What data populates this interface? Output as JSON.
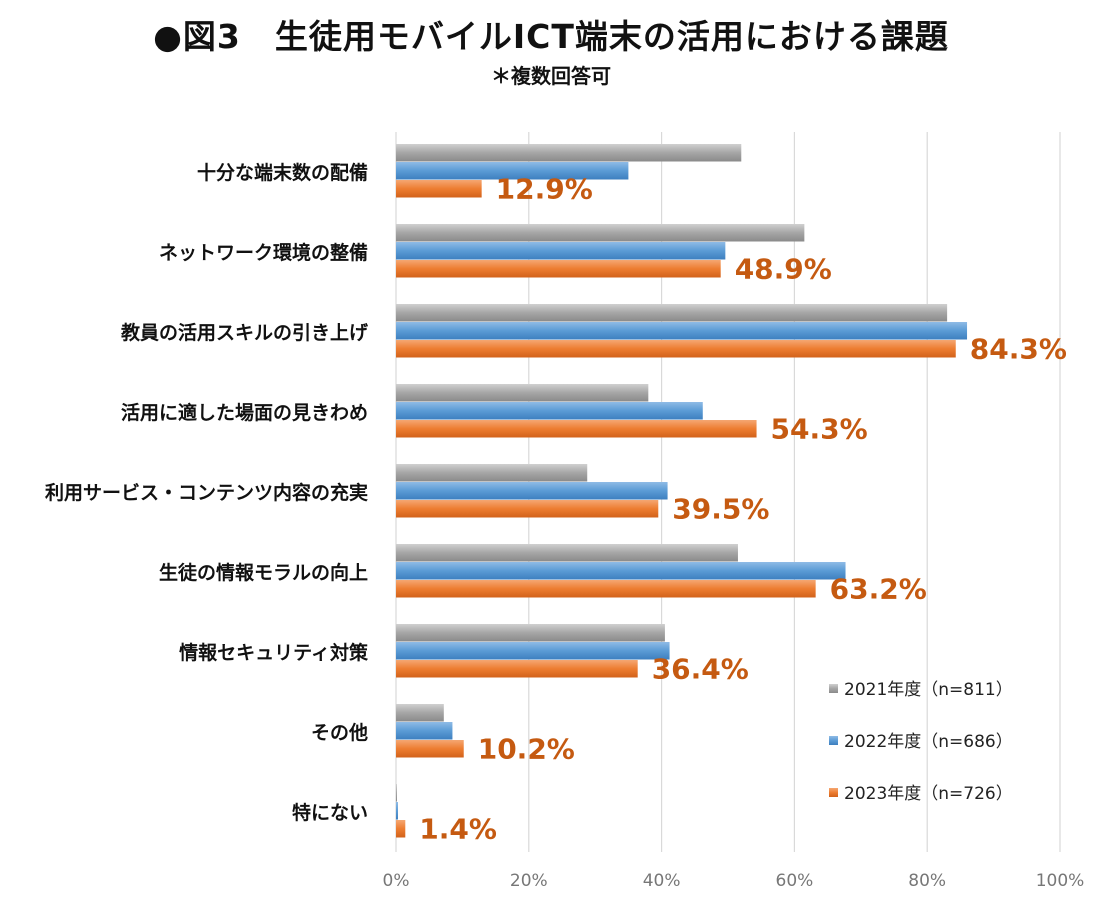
{
  "header": {
    "title": "●図3　生徒用モバイルICT端末の活用における課題",
    "subtitle": "＊複数回答可"
  },
  "colors": {
    "s2021": "#a6a6a6",
    "s2022": "#5b9bd5",
    "s2023": "#ed7d31",
    "label": "#c55a11",
    "grid": "#d9d9d9"
  },
  "chart_data": {
    "type": "bar",
    "orientation": "horizontal",
    "categories": [
      "十分な端末数の配備",
      "ネットワーク環境の整備",
      "教員の活用スキルの引き上げ",
      "活用に適した場面の見きわめ",
      "利用サービス・コンテンツ内容の充実",
      "生徒の情報モラルの向上",
      "情報セキュリティ対策",
      "その他",
      "特にない"
    ],
    "series": [
      {
        "name": "2021年度（n=811）",
        "values": [
          52,
          61.5,
          83,
          38,
          28.8,
          51.5,
          40.5,
          7.2,
          0.1
        ]
      },
      {
        "name": "2022年度（n=686）",
        "values": [
          35,
          49.6,
          86,
          46.2,
          40.9,
          67.7,
          41.2,
          8.5,
          0.3
        ]
      },
      {
        "name": "2023年度（n=726）",
        "values": [
          12.9,
          48.9,
          84.3,
          54.3,
          39.5,
          63.2,
          36.4,
          10.2,
          1.4
        ]
      }
    ],
    "data_labels": [
      "12.9%",
      "48.9%",
      "84.3%",
      "54.3%",
      "39.5%",
      "63.2%",
      "36.4%",
      "10.2%",
      "1.4%"
    ],
    "xticks": [
      "0%",
      "20%",
      "40%",
      "60%",
      "80%",
      "100%"
    ],
    "xlim": [
      0,
      100
    ],
    "legend_position": "bottom-right",
    "grid": true
  }
}
